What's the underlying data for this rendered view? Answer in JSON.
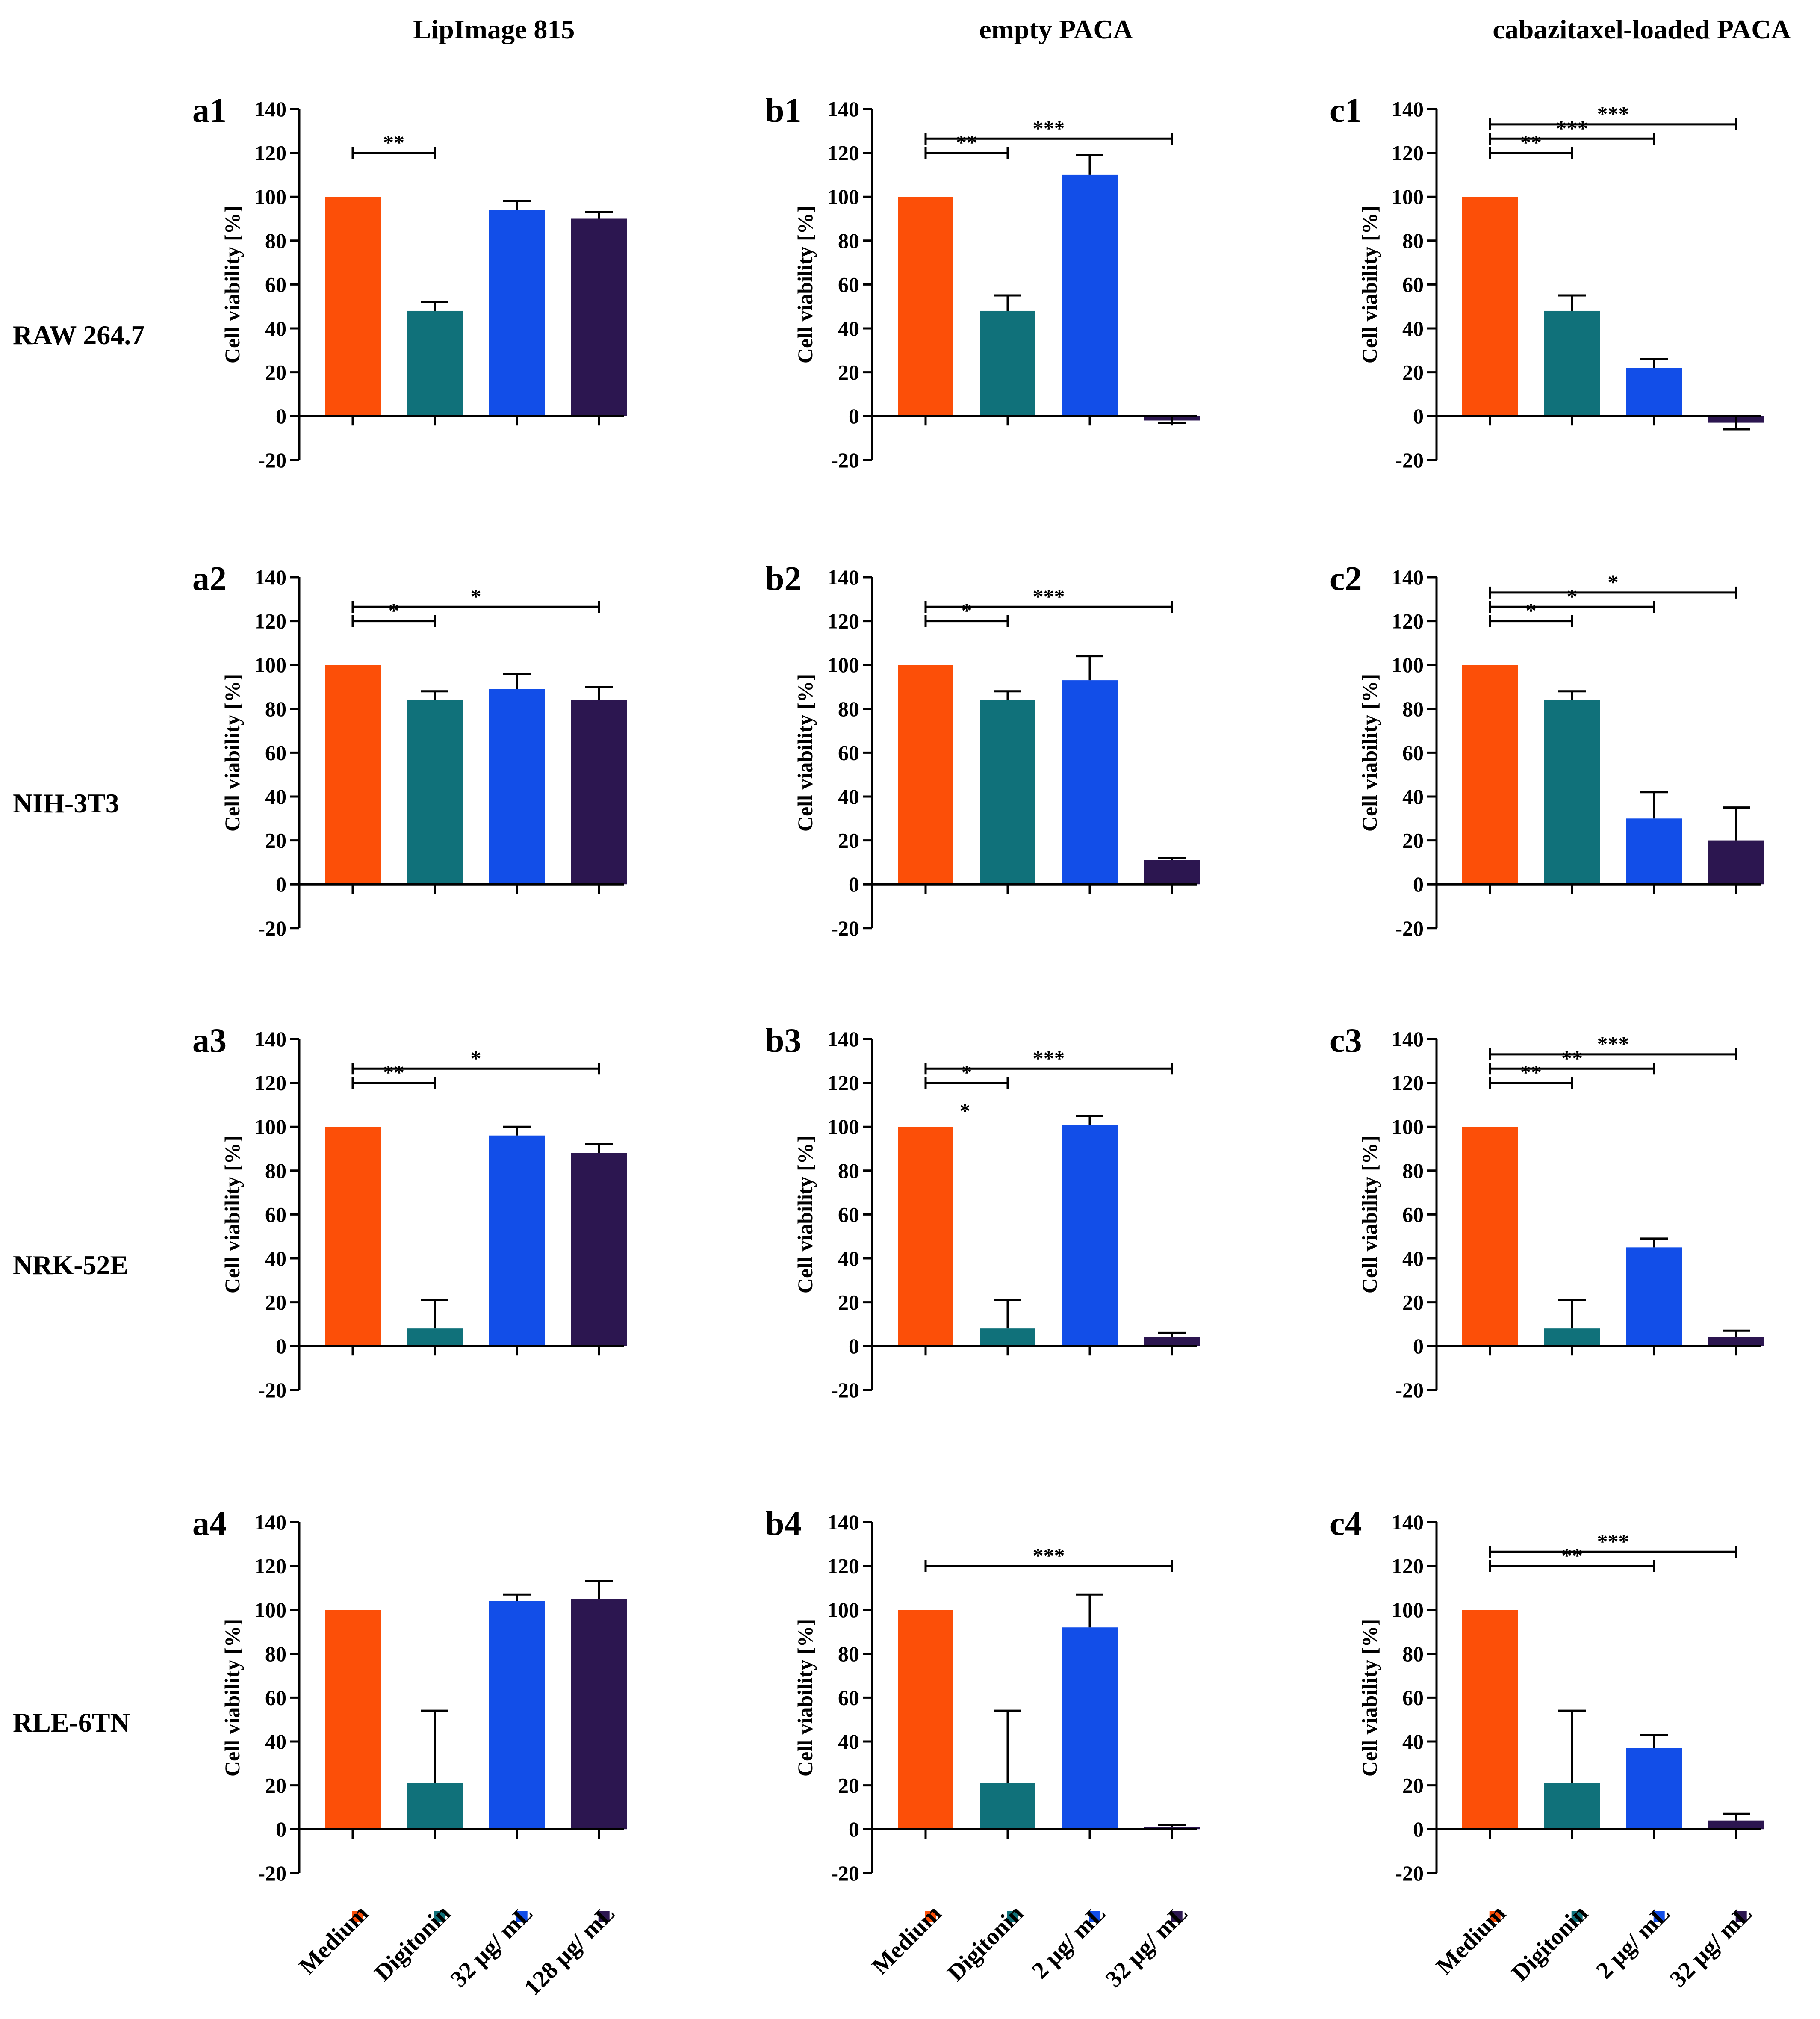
{
  "column_titles": [
    "LipImage 815",
    "empty PACA",
    "cabazitaxel-loaded PACA"
  ],
  "row_labels": [
    "RAW 264.7",
    "NIH-3T3",
    "NRK-52E",
    "RLE-6TN"
  ],
  "x_tick_labels": {
    "a": [
      "Medium",
      "Digitonin",
      "32 µg/ mL",
      "128 µg/ mL"
    ],
    "b": [
      "Medium",
      "Digitonin",
      "2 µg/ mL",
      "32 µg/ mL"
    ],
    "c": [
      "Medium",
      "Digitonin",
      "2 µg/ mL",
      "32 µg/ mL"
    ]
  },
  "colors": {
    "bars": [
      "#fc4f08",
      "#10717a",
      "#124ee8",
      "#2c1650"
    ],
    "axis": "#000000",
    "background": "#ffffff"
  },
  "chart_data": [
    {
      "id": "a1",
      "type": "bar",
      "title": "a1",
      "ylabel": "Cell viability [%]",
      "ylim": [
        -20,
        140
      ],
      "yticks": [
        -20,
        0,
        20,
        40,
        60,
        80,
        100,
        120,
        140
      ],
      "categories": [
        "Medium",
        "Digitonin",
        "32 µg/ mL",
        "128 µg/ mL"
      ],
      "values": [
        100,
        48,
        94,
        90
      ],
      "errors": [
        0,
        4,
        4,
        3
      ],
      "significance": [
        {
          "from": 0,
          "to": 1,
          "label": "**"
        }
      ]
    },
    {
      "id": "b1",
      "type": "bar",
      "title": "b1",
      "ylabel": "Cell viability [%]",
      "ylim": [
        -20,
        140
      ],
      "yticks": [
        -20,
        0,
        20,
        40,
        60,
        80,
        100,
        120,
        140
      ],
      "categories": [
        "Medium",
        "Digitonin",
        "2 µg/ mL",
        "32 µg/ mL"
      ],
      "values": [
        100,
        48,
        110,
        -2
      ],
      "errors": [
        0,
        7,
        9,
        1
      ],
      "significance": [
        {
          "from": 0,
          "to": 1,
          "label": "**"
        },
        {
          "from": 0,
          "to": 3,
          "label": "***"
        }
      ]
    },
    {
      "id": "c1",
      "type": "bar",
      "title": "c1",
      "ylabel": "Cell viability [%]",
      "ylim": [
        -20,
        140
      ],
      "yticks": [
        -20,
        0,
        20,
        40,
        60,
        80,
        100,
        120,
        140
      ],
      "categories": [
        "Medium",
        "Digitonin",
        "2 µg/ mL",
        "32 µg/ mL"
      ],
      "values": [
        100,
        48,
        22,
        -3
      ],
      "errors": [
        0,
        7,
        4,
        3
      ],
      "significance": [
        {
          "from": 0,
          "to": 1,
          "label": "**"
        },
        {
          "from": 0,
          "to": 2,
          "label": "***"
        },
        {
          "from": 0,
          "to": 3,
          "label": "***"
        }
      ]
    },
    {
      "id": "a2",
      "type": "bar",
      "title": "a2",
      "ylabel": "Cell viability [%]",
      "ylim": [
        -20,
        140
      ],
      "yticks": [
        -20,
        0,
        20,
        40,
        60,
        80,
        100,
        120,
        140
      ],
      "categories": [
        "Medium",
        "Digitonin",
        "32 µg/ mL",
        "128 µg/ mL"
      ],
      "values": [
        100,
        84,
        89,
        84
      ],
      "errors": [
        0,
        4,
        7,
        6
      ],
      "significance": [
        {
          "from": 0,
          "to": 1,
          "label": "*"
        },
        {
          "from": 0,
          "to": 3,
          "label": "*"
        }
      ]
    },
    {
      "id": "b2",
      "type": "bar",
      "title": "b2",
      "ylabel": "Cell viability [%]",
      "ylim": [
        -20,
        140
      ],
      "yticks": [
        -20,
        0,
        20,
        40,
        60,
        80,
        100,
        120,
        140
      ],
      "categories": [
        "Medium",
        "Digitonin",
        "2 µg/ mL",
        "32 µg/ mL"
      ],
      "values": [
        100,
        84,
        93,
        11
      ],
      "errors": [
        0,
        4,
        11,
        1
      ],
      "significance": [
        {
          "from": 0,
          "to": 1,
          "label": "*"
        },
        {
          "from": 0,
          "to": 3,
          "label": "***"
        }
      ]
    },
    {
      "id": "c2",
      "type": "bar",
      "title": "c2",
      "ylabel": "Cell viability [%]",
      "ylim": [
        -20,
        140
      ],
      "yticks": [
        -20,
        0,
        20,
        40,
        60,
        80,
        100,
        120,
        140
      ],
      "categories": [
        "Medium",
        "Digitonin",
        "2 µg/ mL",
        "32 µg/ mL"
      ],
      "values": [
        100,
        84,
        30,
        20
      ],
      "errors": [
        0,
        4,
        12,
        15
      ],
      "significance": [
        {
          "from": 0,
          "to": 1,
          "label": "*"
        },
        {
          "from": 0,
          "to": 2,
          "label": "*"
        },
        {
          "from": 0,
          "to": 3,
          "label": "*"
        }
      ]
    },
    {
      "id": "a3",
      "type": "bar",
      "title": "a3",
      "ylabel": "Cell viability [%]",
      "ylim": [
        -20,
        140
      ],
      "yticks": [
        -20,
        0,
        20,
        40,
        60,
        80,
        100,
        120,
        140
      ],
      "categories": [
        "Medium",
        "Digitonin",
        "32 µg/ mL",
        "128 µg/ mL"
      ],
      "values": [
        100,
        8,
        96,
        88
      ],
      "errors": [
        0,
        13,
        4,
        4
      ],
      "significance": [
        {
          "from": 0,
          "to": 1,
          "label": "**"
        },
        {
          "from": 0,
          "to": 3,
          "label": "*"
        }
      ]
    },
    {
      "id": "b3",
      "type": "bar",
      "title": "b3",
      "ylabel": "Cell viability [%]",
      "ylim": [
        -20,
        140
      ],
      "yticks": [
        -20,
        0,
        20,
        40,
        60,
        80,
        100,
        120,
        140
      ],
      "categories": [
        "Medium",
        "Digitonin",
        "2 µg/ mL",
        "32 µg/ mL"
      ],
      "values": [
        100,
        8,
        101,
        4
      ],
      "errors": [
        0,
        13,
        4,
        2
      ],
      "significance": [
        {
          "from": 0,
          "to": 1,
          "label": "*",
          "sublabel": "*"
        },
        {
          "from": 0,
          "to": 3,
          "label": "***"
        }
      ]
    },
    {
      "id": "c3",
      "type": "bar",
      "title": "c3",
      "ylabel": "Cell viability [%]",
      "ylim": [
        -20,
        140
      ],
      "yticks": [
        -20,
        0,
        20,
        40,
        60,
        80,
        100,
        120,
        140
      ],
      "categories": [
        "Medium",
        "Digitonin",
        "2 µg/ mL",
        "32 µg/ mL"
      ],
      "values": [
        100,
        8,
        45,
        4
      ],
      "errors": [
        0,
        13,
        4,
        3
      ],
      "significance": [
        {
          "from": 0,
          "to": 1,
          "label": "**"
        },
        {
          "from": 0,
          "to": 2,
          "label": "**"
        },
        {
          "from": 0,
          "to": 3,
          "label": "***"
        }
      ]
    },
    {
      "id": "a4",
      "type": "bar",
      "title": "a4",
      "ylabel": "Cell viability [%]",
      "ylim": [
        -20,
        140
      ],
      "yticks": [
        -20,
        0,
        20,
        40,
        60,
        80,
        100,
        120,
        140
      ],
      "categories": [
        "Medium",
        "Digitonin",
        "32 µg/ mL",
        "128 µg/ mL"
      ],
      "values": [
        100,
        21,
        104,
        105
      ],
      "errors": [
        0,
        33,
        3,
        8
      ],
      "significance": []
    },
    {
      "id": "b4",
      "type": "bar",
      "title": "b4",
      "ylabel": "Cell viability [%]",
      "ylim": [
        -20,
        140
      ],
      "yticks": [
        -20,
        0,
        20,
        40,
        60,
        80,
        100,
        120,
        140
      ],
      "categories": [
        "Medium",
        "Digitonin",
        "2 µg/ mL",
        "32 µg/ mL"
      ],
      "values": [
        100,
        21,
        92,
        1
      ],
      "errors": [
        0,
        33,
        15,
        1
      ],
      "significance": [
        {
          "from": 0,
          "to": 3,
          "label": "***"
        }
      ]
    },
    {
      "id": "c4",
      "type": "bar",
      "title": "c4",
      "ylabel": "Cell viability [%]",
      "ylim": [
        -20,
        140
      ],
      "yticks": [
        -20,
        0,
        20,
        40,
        60,
        80,
        100,
        120,
        140
      ],
      "categories": [
        "Medium",
        "Digitonin",
        "2 µg/ mL",
        "32 µg/ mL"
      ],
      "values": [
        100,
        21,
        37,
        4
      ],
      "errors": [
        0,
        33,
        6,
        3
      ],
      "significance": [
        {
          "from": 0,
          "to": 2,
          "label": "**"
        },
        {
          "from": 0,
          "to": 3,
          "label": "***"
        }
      ]
    }
  ]
}
